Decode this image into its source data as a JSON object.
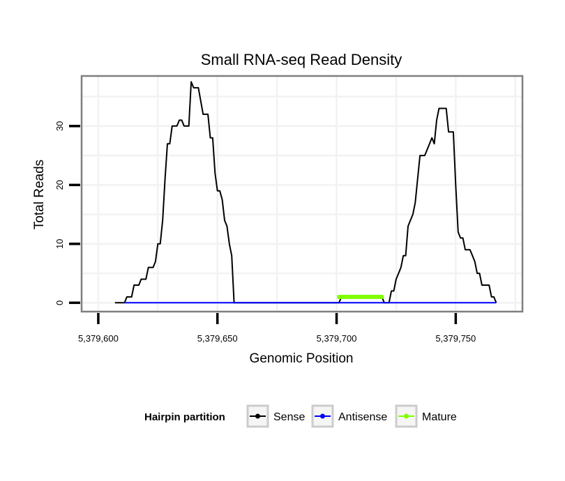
{
  "chart_data": {
    "type": "line",
    "title": "Small RNA-seq Read Density",
    "xlabel": "Genomic Position",
    "ylabel": "Total Reads",
    "xlim": [
      5379593,
      5379778
    ],
    "ylim": [
      -1.5,
      38.5
    ],
    "x_ticks": [
      5379600,
      5379650,
      5379700,
      5379750
    ],
    "x_tick_labels": [
      "5,379,600",
      "5,379,650",
      "5,379,700",
      "5,379,750"
    ],
    "y_ticks": [
      0,
      10,
      20,
      30
    ],
    "y_tick_labels": [
      "0",
      "10",
      "20",
      "30"
    ],
    "grid": true,
    "legend": {
      "title": "Hairpin partition",
      "position": "bottom",
      "entries": [
        {
          "name": "Sense",
          "color": "#000000"
        },
        {
          "name": "Antisense",
          "color": "#0000ff"
        },
        {
          "name": "Mature",
          "color": "#7fff00"
        }
      ]
    },
    "series": [
      {
        "name": "Sense",
        "color": "#000000",
        "points": [
          [
            5379607,
            0
          ],
          [
            5379611,
            0
          ],
          [
            5379612,
            1
          ],
          [
            5379614,
            1
          ],
          [
            5379615,
            3
          ],
          [
            5379617,
            3
          ],
          [
            5379618,
            4
          ],
          [
            5379620,
            4
          ],
          [
            5379621,
            6
          ],
          [
            5379623,
            6
          ],
          [
            5379624,
            7
          ],
          [
            5379625,
            10
          ],
          [
            5379626,
            10
          ],
          [
            5379627,
            14
          ],
          [
            5379628,
            21
          ],
          [
            5379629,
            27
          ],
          [
            5379630,
            27
          ],
          [
            5379631,
            30
          ],
          [
            5379633,
            30
          ],
          [
            5379634,
            31
          ],
          [
            5379635,
            31
          ],
          [
            5379636,
            30
          ],
          [
            5379638,
            30
          ],
          [
            5379639,
            37.5
          ],
          [
            5379640,
            36.5
          ],
          [
            5379642,
            36.5
          ],
          [
            5379644,
            32
          ],
          [
            5379646,
            32
          ],
          [
            5379647,
            28
          ],
          [
            5379648,
            28
          ],
          [
            5379649,
            22
          ],
          [
            5379650,
            19
          ],
          [
            5379651,
            19
          ],
          [
            5379652,
            17.5
          ],
          [
            5379653,
            14
          ],
          [
            5379654,
            13
          ],
          [
            5379655,
            10
          ],
          [
            5379656,
            8
          ],
          [
            5379657,
            0
          ],
          [
            5379701,
            0
          ],
          [
            5379702,
            1
          ],
          [
            5379719,
            1
          ],
          [
            5379720,
            0
          ],
          [
            5379722,
            0
          ],
          [
            5379723,
            2
          ],
          [
            5379724,
            2
          ],
          [
            5379725,
            4
          ],
          [
            5379726,
            5
          ],
          [
            5379727,
            6
          ],
          [
            5379728,
            8
          ],
          [
            5379729,
            8
          ],
          [
            5379730,
            13
          ],
          [
            5379731,
            14
          ],
          [
            5379732,
            15
          ],
          [
            5379733,
            17
          ],
          [
            5379734,
            21
          ],
          [
            5379735,
            25
          ],
          [
            5379737,
            25
          ],
          [
            5379738,
            26
          ],
          [
            5379739,
            27
          ],
          [
            5379740,
            28
          ],
          [
            5379741,
            27
          ],
          [
            5379742,
            31
          ],
          [
            5379743,
            33
          ],
          [
            5379746,
            33
          ],
          [
            5379747,
            29
          ],
          [
            5379749,
            29
          ],
          [
            5379750,
            20
          ],
          [
            5379751,
            12
          ],
          [
            5379752,
            11
          ],
          [
            5379753,
            11
          ],
          [
            5379754,
            9
          ],
          [
            5379756,
            9
          ],
          [
            5379757,
            8
          ],
          [
            5379758,
            7
          ],
          [
            5379759,
            5
          ],
          [
            5379760,
            5
          ],
          [
            5379761,
            3
          ],
          [
            5379764,
            3
          ],
          [
            5379765,
            1
          ],
          [
            5379766,
            1
          ],
          [
            5379767,
            0
          ]
        ]
      },
      {
        "name": "Antisense",
        "color": "#0000ff",
        "points": [
          [
            5379611,
            0
          ],
          [
            5379767,
            0
          ]
        ]
      },
      {
        "name": "Mature",
        "color": "#7fff00",
        "points": [
          [
            5379701,
            1
          ],
          [
            5379719,
            1
          ]
        ]
      }
    ]
  }
}
